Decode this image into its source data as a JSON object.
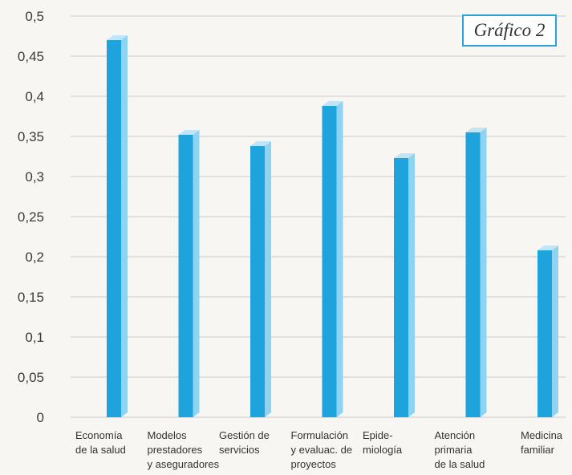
{
  "chart_data": {
    "type": "bar",
    "title": "Gráfico 2",
    "xlabel": "",
    "ylabel": "",
    "ylim": [
      0,
      0.5
    ],
    "yticks": [
      "0",
      "0,05",
      "0,1",
      "0,15",
      "0,2",
      "0,25",
      "0,3",
      "0,35",
      "0,4",
      "0,45",
      "0,5"
    ],
    "grid": true,
    "categories": [
      [
        "Economía",
        "de la salud"
      ],
      [
        "Modelos",
        "prestadores",
        "y aseguradores"
      ],
      [
        "Gestión de",
        "servicios"
      ],
      [
        "Formulación",
        "y evaluac. de",
        "proyectos"
      ],
      [
        "Epide-",
        "miología"
      ],
      [
        "Atención",
        "primaria",
        "de la salud"
      ],
      [
        "Medicina",
        "familiar"
      ]
    ],
    "values": [
      0.47,
      0.352,
      0.338,
      0.388,
      0.323,
      0.355,
      0.208
    ],
    "colors": {
      "bar_front": "#1fa3dc",
      "bar_side": "#8fd3f2",
      "bar_top": "#bfe6f8",
      "title_border": "#2aa3dc"
    }
  }
}
